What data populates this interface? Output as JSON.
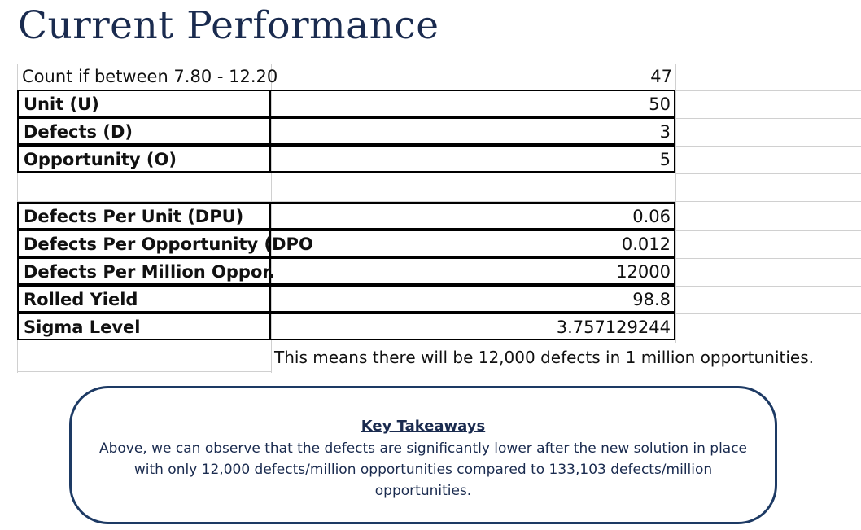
{
  "page_title": "Current Performance",
  "table": {
    "top_rows": [
      {
        "label": "Count if between 7.80 - 12.20",
        "value": "47"
      },
      {
        "label": "Unit (U)",
        "value": "50"
      },
      {
        "label": "Defects (D)",
        "value": "3"
      },
      {
        "label": "Opportunity (O)",
        "value": "5"
      }
    ],
    "metric_rows": [
      {
        "label": "Defects Per Unit (DPU)",
        "value": "0.06"
      },
      {
        "label": "Defects Per Opportunity (DPO",
        "value": "0.012"
      },
      {
        "label": "Defects Per Million Oppor.",
        "value": "12000"
      },
      {
        "label": "Rolled Yield",
        "value": "98.8"
      },
      {
        "label": "Sigma Level",
        "value": "3.757129244"
      }
    ],
    "note": "This means there will be 12,000 defects in 1 million opportunities."
  },
  "takeaways": {
    "title": "Key Takeaways",
    "body": "Above, we can observe that the defects are significantly lower after the new solution in place with only 12,000 defects/million opportunities compared to 133,103 defects/million opportunities."
  }
}
